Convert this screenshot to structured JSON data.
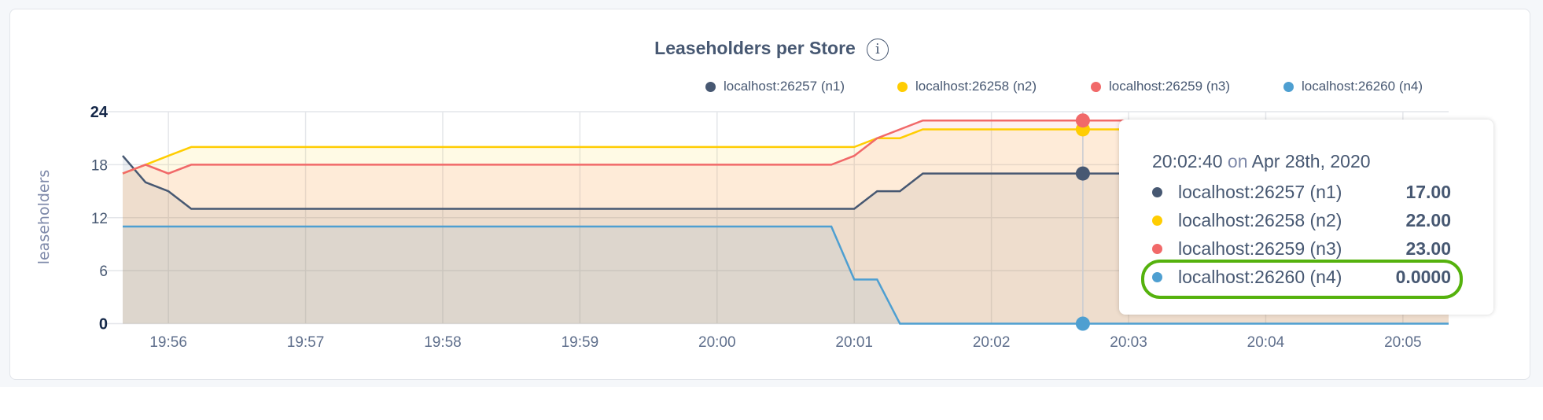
{
  "chart_data": {
    "type": "line",
    "title": "Leaseholders per Store",
    "ylabel": "leaseholders",
    "xlabel": "",
    "ylim": [
      0,
      24
    ],
    "yticks": [
      "0",
      "6",
      "12",
      "18",
      "24"
    ],
    "xticks": [
      "19:56",
      "19:57",
      "19:58",
      "19:59",
      "20:00",
      "20:01",
      "20:02",
      "20:03",
      "20:04",
      "20:05"
    ],
    "grid": true,
    "legend_position": "top-right",
    "x": [
      "19:55:40",
      "19:55:50",
      "19:56:00",
      "19:56:10",
      "19:56:20",
      "19:56:30",
      "19:56:40",
      "19:56:50",
      "19:57:00",
      "19:57:10",
      "19:57:20",
      "19:57:30",
      "19:57:40",
      "19:57:50",
      "19:58:00",
      "19:58:10",
      "19:58:20",
      "19:58:30",
      "19:58:40",
      "19:58:50",
      "19:59:00",
      "19:59:10",
      "19:59:20",
      "19:59:30",
      "19:59:40",
      "19:59:50",
      "20:00:00",
      "20:00:10",
      "20:00:20",
      "20:00:30",
      "20:00:40",
      "20:00:50",
      "20:01:00",
      "20:01:10",
      "20:01:20",
      "20:01:30",
      "20:01:40",
      "20:01:50",
      "20:02:00",
      "20:02:10",
      "20:02:20",
      "20:02:30",
      "20:02:40",
      "20:02:50",
      "20:03:00",
      "20:03:10",
      "20:03:20",
      "20:03:30",
      "20:03:40",
      "20:03:50",
      "20:04:00",
      "20:04:10",
      "20:04:20",
      "20:04:30",
      "20:04:40",
      "20:04:50",
      "20:05:00",
      "20:05:10",
      "20:05:20"
    ],
    "series": [
      {
        "name": "localhost:26257 (n1)",
        "color": "#475872",
        "values": [
          19,
          16,
          15,
          13,
          13,
          13,
          13,
          13,
          13,
          13,
          13,
          13,
          13,
          13,
          13,
          13,
          13,
          13,
          13,
          13,
          13,
          13,
          13,
          13,
          13,
          13,
          13,
          13,
          13,
          13,
          13,
          13,
          13,
          15,
          15,
          17,
          17,
          17,
          17,
          17,
          17,
          17,
          17,
          17,
          17,
          17,
          17,
          17,
          17,
          17,
          17,
          17,
          17,
          17,
          17,
          17,
          17,
          17,
          17
        ]
      },
      {
        "name": "localhost:26258 (n2)",
        "color": "#ffcd02",
        "values": [
          17,
          18,
          19,
          20,
          20,
          20,
          20,
          20,
          20,
          20,
          20,
          20,
          20,
          20,
          20,
          20,
          20,
          20,
          20,
          20,
          20,
          20,
          20,
          20,
          20,
          20,
          20,
          20,
          20,
          20,
          20,
          20,
          20,
          21,
          21,
          22,
          22,
          22,
          22,
          22,
          22,
          22,
          22,
          22,
          22,
          22,
          22,
          22,
          22,
          22,
          22,
          22,
          22,
          22,
          22,
          22,
          22,
          22,
          22
        ]
      },
      {
        "name": "localhost:26259 (n3)",
        "color": "#f16969",
        "values": [
          17,
          18,
          17,
          18,
          18,
          18,
          18,
          18,
          18,
          18,
          18,
          18,
          18,
          18,
          18,
          18,
          18,
          18,
          18,
          18,
          18,
          18,
          18,
          18,
          18,
          18,
          18,
          18,
          18,
          18,
          18,
          18,
          19,
          21,
          22,
          23,
          23,
          23,
          23,
          23,
          23,
          23,
          23,
          23,
          23,
          23,
          23,
          23,
          23,
          23,
          23,
          23,
          23,
          23,
          23,
          23,
          23,
          23,
          23
        ]
      },
      {
        "name": "localhost:26260 (n4)",
        "color": "#4e9fd1",
        "values": [
          11,
          11,
          11,
          11,
          11,
          11,
          11,
          11,
          11,
          11,
          11,
          11,
          11,
          11,
          11,
          11,
          11,
          11,
          11,
          11,
          11,
          11,
          11,
          11,
          11,
          11,
          11,
          11,
          11,
          11,
          11,
          11,
          5,
          5,
          0,
          0,
          0,
          0,
          0,
          0,
          0,
          0,
          0,
          0,
          0,
          0,
          0,
          0,
          0,
          0,
          0,
          0,
          0,
          0,
          0,
          0,
          0,
          0,
          0
        ]
      }
    ],
    "hover_x": "20:02:40"
  },
  "tooltip": {
    "time": "20:02:40",
    "on": "on",
    "date": "Apr 28th, 2020",
    "rows": [
      {
        "label": "localhost:26257 (n1)",
        "value": "17.00",
        "color": "#475872"
      },
      {
        "label": "localhost:26258 (n2)",
        "value": "22.00",
        "color": "#ffcd02"
      },
      {
        "label": "localhost:26259 (n3)",
        "value": "23.00",
        "color": "#f16969"
      },
      {
        "label": "localhost:26260 (n4)",
        "value": "0.0000",
        "color": "#4e9fd1"
      }
    ],
    "highlight_color": "#55b20d"
  },
  "info_icon": "info-circle-icon"
}
